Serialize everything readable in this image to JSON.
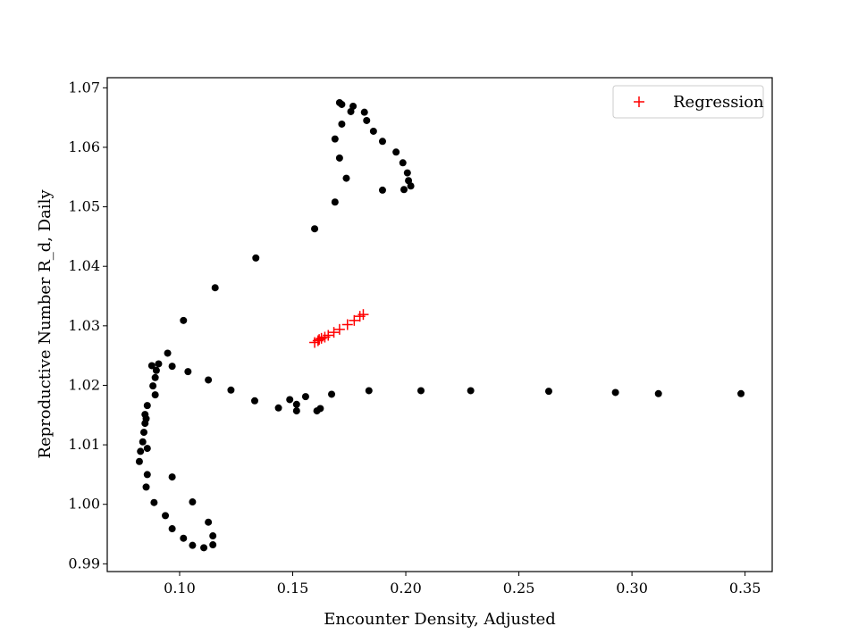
{
  "chart_data": {
    "type": "scatter",
    "xlabel": "Encounter Density, Adjusted",
    "ylabel": "Reproductive Number R_d, Daily",
    "xlim": [
      0.068,
      0.362
    ],
    "ylim": [
      0.9887,
      1.0717
    ],
    "x_ticks": [
      0.1,
      0.15,
      0.2,
      0.25,
      0.3,
      0.35
    ],
    "x_tick_labels": [
      "0.10",
      "0.15",
      "0.20",
      "0.25",
      "0.30",
      "0.35"
    ],
    "y_ticks": [
      0.99,
      1.0,
      1.01,
      1.02,
      1.03,
      1.04,
      1.05,
      1.06,
      1.07
    ],
    "y_tick_labels": [
      "0.99",
      "1.00",
      "1.01",
      "1.02",
      "1.03",
      "1.04",
      "1.05",
      "1.06",
      "1.07"
    ],
    "grid": false,
    "legend": {
      "position": "top-right",
      "entries": [
        "Regression"
      ]
    },
    "series": [
      {
        "marker": "dot",
        "color": "#000000",
        "points": [
          [
            0.1707,
            1.0675
          ],
          [
            0.1717,
            1.0672
          ],
          [
            0.1767,
            1.0669
          ],
          [
            0.1757,
            1.066
          ],
          [
            0.1817,
            1.0659
          ],
          [
            0.1827,
            1.0645
          ],
          [
            0.1717,
            1.0639
          ],
          [
            0.1857,
            1.0627
          ],
          [
            0.1687,
            1.0614
          ],
          [
            0.1897,
            1.061
          ],
          [
            0.1957,
            1.0592
          ],
          [
            0.1707,
            1.0582
          ],
          [
            0.1987,
            1.0574
          ],
          [
            0.2007,
            1.0557
          ],
          [
            0.1737,
            1.0548
          ],
          [
            0.2012,
            1.0544
          ],
          [
            0.2022,
            1.0535
          ],
          [
            0.1992,
            1.0529
          ],
          [
            0.1897,
            1.0528
          ],
          [
            0.1687,
            1.0508
          ],
          [
            0.1597,
            1.0463
          ],
          [
            0.1337,
            1.0414
          ],
          [
            0.1157,
            1.0364
          ],
          [
            0.1017,
            1.0309
          ],
          [
            0.0947,
            1.0254
          ],
          [
            0.0907,
            1.0236
          ],
          [
            0.0877,
            1.0233
          ],
          [
            0.0967,
            1.0232
          ],
          [
            0.0897,
            1.0225
          ],
          [
            0.1037,
            1.0223
          ],
          [
            0.0892,
            1.0213
          ],
          [
            0.1127,
            1.0209
          ],
          [
            0.0882,
            1.0199
          ],
          [
            0.1227,
            1.0192
          ],
          [
            0.1837,
            1.0191
          ],
          [
            0.2067,
            1.0191
          ],
          [
            0.2287,
            1.0191
          ],
          [
            0.2632,
            1.019
          ],
          [
            0.2927,
            1.0188
          ],
          [
            0.3117,
            1.0186
          ],
          [
            0.3482,
            1.0186
          ],
          [
            0.1672,
            1.0185
          ],
          [
            0.0892,
            1.0184
          ],
          [
            0.1557,
            1.0181
          ],
          [
            0.1487,
            1.0176
          ],
          [
            0.1332,
            1.0174
          ],
          [
            0.1517,
            1.0168
          ],
          [
            0.0857,
            1.0166
          ],
          [
            0.1437,
            1.0162
          ],
          [
            0.1622,
            1.0161
          ],
          [
            0.1517,
            1.0157
          ],
          [
            0.1607,
            1.0157
          ],
          [
            0.0847,
            1.0151
          ],
          [
            0.0852,
            1.0144
          ],
          [
            0.0847,
            1.0136
          ],
          [
            0.0842,
            1.0121
          ],
          [
            0.0837,
            1.0105
          ],
          [
            0.0857,
            1.0094
          ],
          [
            0.0827,
            1.0089
          ],
          [
            0.0822,
            1.0072
          ],
          [
            0.0857,
            1.005
          ],
          [
            0.0967,
            1.0046
          ],
          [
            0.0852,
            1.0029
          ],
          [
            0.1057,
            1.0004
          ],
          [
            0.0887,
            1.0003
          ],
          [
            0.0937,
            0.9981
          ],
          [
            0.1127,
            0.997
          ],
          [
            0.0967,
            0.9959
          ],
          [
            0.1147,
            0.9947
          ],
          [
            0.1017,
            0.9943
          ],
          [
            0.1147,
            0.9932
          ],
          [
            0.1057,
            0.9931
          ],
          [
            0.1107,
            0.9927
          ]
        ]
      },
      {
        "name": "Regression",
        "marker": "plus",
        "color": "#ff0000",
        "points": [
          [
            0.1597,
            1.0272
          ],
          [
            0.1612,
            1.0275
          ],
          [
            0.1617,
            1.0277
          ],
          [
            0.1627,
            1.0279
          ],
          [
            0.1642,
            1.0281
          ],
          [
            0.1657,
            1.0284
          ],
          [
            0.1682,
            1.0289
          ],
          [
            0.1707,
            1.0294
          ],
          [
            0.1742,
            1.0302
          ],
          [
            0.1772,
            1.0309
          ],
          [
            0.1797,
            1.0316
          ],
          [
            0.1812,
            1.0319
          ]
        ]
      }
    ]
  }
}
